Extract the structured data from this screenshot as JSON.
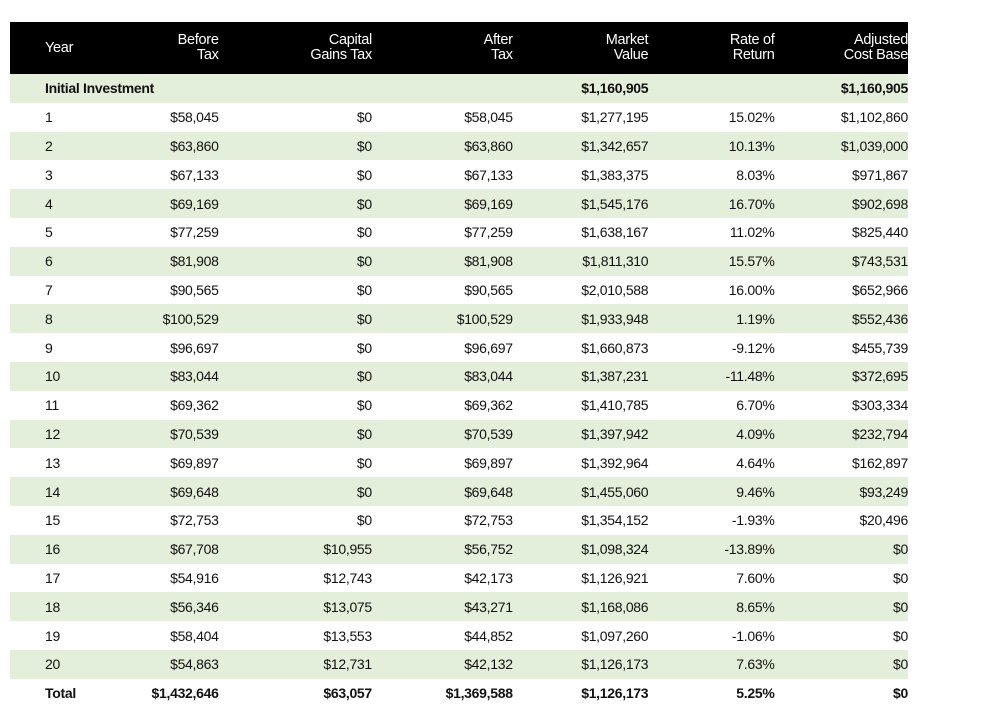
{
  "table": {
    "headers": [
      [
        "Year"
      ],
      [
        "Before",
        "Tax"
      ],
      [
        "Capital",
        "Gains Tax"
      ],
      [
        "After",
        "Tax"
      ],
      [
        "Market",
        "Value"
      ],
      [
        "Rate of",
        "Return"
      ],
      [
        "Adjusted",
        "Cost Base"
      ]
    ],
    "initial": {
      "label": "Initial Investment",
      "market_value": "$1,160,905",
      "adjusted_cost_base": "$1,160,905"
    },
    "rows": [
      [
        "1",
        "$58,045",
        "$0",
        "$58,045",
        "$1,277,195",
        "15.02%",
        "$1,102,860"
      ],
      [
        "2",
        "$63,860",
        "$0",
        "$63,860",
        "$1,342,657",
        "10.13%",
        "$1,039,000"
      ],
      [
        "3",
        "$67,133",
        "$0",
        "$67,133",
        "$1,383,375",
        "8.03%",
        "$971,867"
      ],
      [
        "4",
        "$69,169",
        "$0",
        "$69,169",
        "$1,545,176",
        "16.70%",
        "$902,698"
      ],
      [
        "5",
        "$77,259",
        "$0",
        "$77,259",
        "$1,638,167",
        "11.02%",
        "$825,440"
      ],
      [
        "6",
        "$81,908",
        "$0",
        "$81,908",
        "$1,811,310",
        "15.57%",
        "$743,531"
      ],
      [
        "7",
        "$90,565",
        "$0",
        "$90,565",
        "$2,010,588",
        "16.00%",
        "$652,966"
      ],
      [
        "8",
        "$100,529",
        "$0",
        "$100,529",
        "$1,933,948",
        "1.19%",
        "$552,436"
      ],
      [
        "9",
        "$96,697",
        "$0",
        "$96,697",
        "$1,660,873",
        "-9.12%",
        "$455,739"
      ],
      [
        "10",
        "$83,044",
        "$0",
        "$83,044",
        "$1,387,231",
        "-11.48%",
        "$372,695"
      ],
      [
        "11",
        "$69,362",
        "$0",
        "$69,362",
        "$1,410,785",
        "6.70%",
        "$303,334"
      ],
      [
        "12",
        "$70,539",
        "$0",
        "$70,539",
        "$1,397,942",
        "4.09%",
        "$232,794"
      ],
      [
        "13",
        "$69,897",
        "$0",
        "$69,897",
        "$1,392,964",
        "4.64%",
        "$162,897"
      ],
      [
        "14",
        "$69,648",
        "$0",
        "$69,648",
        "$1,455,060",
        "9.46%",
        "$93,249"
      ],
      [
        "15",
        "$72,753",
        "$0",
        "$72,753",
        "$1,354,152",
        "-1.93%",
        "$20,496"
      ],
      [
        "16",
        "$67,708",
        "$10,955",
        "$56,752",
        "$1,098,324",
        "-13.89%",
        "$0"
      ],
      [
        "17",
        "$54,916",
        "$12,743",
        "$42,173",
        "$1,126,921",
        "7.60%",
        "$0"
      ],
      [
        "18",
        "$56,346",
        "$13,075",
        "$43,271",
        "$1,168,086",
        "8.65%",
        "$0"
      ],
      [
        "19",
        "$58,404",
        "$13,553",
        "$44,852",
        "$1,097,260",
        "-1.06%",
        "$0"
      ],
      [
        "20",
        "$54,863",
        "$12,731",
        "$42,132",
        "$1,126,173",
        "7.63%",
        "$0"
      ]
    ],
    "total": [
      "Total",
      "$1,432,646",
      "$63,057",
      "$1,369,588",
      "$1,126,173",
      "5.25%",
      "$0"
    ]
  },
  "colors": {
    "header_bg": "#000000",
    "header_text": "#ffffff",
    "row_shade": "#e3efda",
    "row_plain": "#ffffff"
  }
}
